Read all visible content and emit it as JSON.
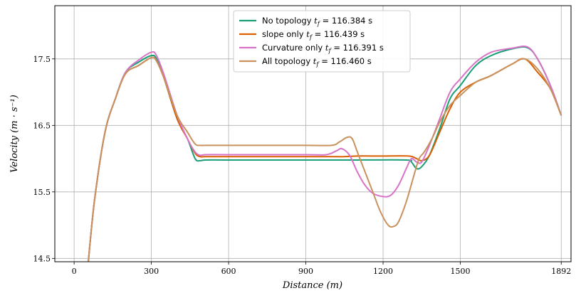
{
  "chart_data": {
    "type": "line",
    "xlabel": "Distance    (m)",
    "ylabel": "Velocity    (m · s⁻¹)",
    "xlim": [
      -75,
      1930
    ],
    "ylim": [
      14.45,
      18.3
    ],
    "x_ticks": [
      0,
      300,
      600,
      900,
      1200,
      1500,
      1892
    ],
    "x_tick_labels": [
      "0",
      "300",
      "600",
      "900",
      "1200",
      "1500",
      "1892"
    ],
    "y_ticks": [
      14.5,
      15.5,
      16.5,
      17.5
    ],
    "y_tick_labels": [
      "14.5",
      "15.5",
      "16.5",
      "17.5"
    ],
    "grid": true,
    "legend_placement": "top-center",
    "series": [
      {
        "name": "No topology",
        "legend_label": "No topology t_f = 116.384 s",
        "legend_prefix": "No topology ",
        "tf_text": "t",
        "tf_sub": "f",
        "tf_value": " = 116.384 s",
        "color": "#1b9e77",
        "points": [
          [
            55,
            14.45
          ],
          [
            80,
            15.4
          ],
          [
            120,
            16.4
          ],
          [
            160,
            16.9
          ],
          [
            200,
            17.3
          ],
          [
            250,
            17.45
          ],
          [
            300,
            17.55
          ],
          [
            320,
            17.5
          ],
          [
            350,
            17.2
          ],
          [
            400,
            16.6
          ],
          [
            440,
            16.3
          ],
          [
            470,
            16.0
          ],
          [
            490,
            15.97
          ],
          [
            510,
            15.98
          ],
          [
            600,
            15.98
          ],
          [
            900,
            15.98
          ],
          [
            1100,
            15.98
          ],
          [
            1290,
            15.98
          ],
          [
            1310,
            15.95
          ],
          [
            1330,
            15.85
          ],
          [
            1350,
            15.88
          ],
          [
            1380,
            16.05
          ],
          [
            1420,
            16.45
          ],
          [
            1460,
            16.9
          ],
          [
            1500,
            17.1
          ],
          [
            1560,
            17.4
          ],
          [
            1620,
            17.55
          ],
          [
            1700,
            17.65
          ],
          [
            1760,
            17.67
          ],
          [
            1800,
            17.5
          ],
          [
            1850,
            17.1
          ],
          [
            1892,
            16.65
          ]
        ]
      },
      {
        "name": "slope only",
        "legend_label": "slope only t_f = 116.439 s",
        "legend_prefix": "slope only ",
        "tf_text": "t",
        "tf_sub": "f",
        "tf_value": " = 116.439 s",
        "color": "#d95f02",
        "points": [
          [
            55,
            14.45
          ],
          [
            80,
            15.4
          ],
          [
            120,
            16.4
          ],
          [
            160,
            16.9
          ],
          [
            200,
            17.28
          ],
          [
            250,
            17.4
          ],
          [
            300,
            17.52
          ],
          [
            320,
            17.47
          ],
          [
            350,
            17.2
          ],
          [
            400,
            16.6
          ],
          [
            440,
            16.3
          ],
          [
            470,
            16.08
          ],
          [
            490,
            16.03
          ],
          [
            510,
            16.03
          ],
          [
            600,
            16.03
          ],
          [
            900,
            16.03
          ],
          [
            1000,
            16.03
          ],
          [
            1050,
            16.03
          ],
          [
            1100,
            16.04
          ],
          [
            1150,
            16.04
          ],
          [
            1200,
            16.04
          ],
          [
            1300,
            16.04
          ],
          [
            1330,
            16.0
          ],
          [
            1350,
            15.97
          ],
          [
            1380,
            16.05
          ],
          [
            1420,
            16.4
          ],
          [
            1460,
            16.75
          ],
          [
            1500,
            17.0
          ],
          [
            1560,
            17.15
          ],
          [
            1620,
            17.25
          ],
          [
            1700,
            17.42
          ],
          [
            1750,
            17.5
          ],
          [
            1800,
            17.3
          ],
          [
            1850,
            17.05
          ],
          [
            1892,
            16.65
          ]
        ]
      },
      {
        "name": "Curvature only",
        "legend_label": "Curvature only t_f = 116.391 s",
        "legend_prefix": "Curvature only ",
        "tf_text": "t",
        "tf_sub": "f",
        "tf_value": " = 116.391 s",
        "color": "#d773c8",
        "points": [
          [
            55,
            14.45
          ],
          [
            80,
            15.4
          ],
          [
            120,
            16.4
          ],
          [
            160,
            16.9
          ],
          [
            200,
            17.3
          ],
          [
            250,
            17.48
          ],
          [
            300,
            17.6
          ],
          [
            320,
            17.55
          ],
          [
            350,
            17.25
          ],
          [
            400,
            16.65
          ],
          [
            440,
            16.3
          ],
          [
            470,
            16.1
          ],
          [
            490,
            16.05
          ],
          [
            510,
            16.06
          ],
          [
            600,
            16.06
          ],
          [
            900,
            16.06
          ],
          [
            980,
            16.06
          ],
          [
            1020,
            16.12
          ],
          [
            1040,
            16.15
          ],
          [
            1070,
            16.05
          ],
          [
            1100,
            15.8
          ],
          [
            1130,
            15.6
          ],
          [
            1160,
            15.48
          ],
          [
            1200,
            15.43
          ],
          [
            1230,
            15.45
          ],
          [
            1260,
            15.6
          ],
          [
            1290,
            15.85
          ],
          [
            1310,
            16.0
          ],
          [
            1330,
            15.95
          ],
          [
            1350,
            15.95
          ],
          [
            1380,
            16.2
          ],
          [
            1420,
            16.6
          ],
          [
            1460,
            17.0
          ],
          [
            1500,
            17.2
          ],
          [
            1560,
            17.45
          ],
          [
            1620,
            17.6
          ],
          [
            1700,
            17.66
          ],
          [
            1760,
            17.68
          ],
          [
            1800,
            17.5
          ],
          [
            1850,
            17.1
          ],
          [
            1892,
            16.65
          ]
        ]
      },
      {
        "name": "All topology",
        "legend_label": "All topology t_f = 116.460 s",
        "legend_prefix": "All topology ",
        "tf_text": "t",
        "tf_sub": "f",
        "tf_value": " = 116.460 s",
        "color": "#c8915d",
        "points": [
          [
            55,
            14.45
          ],
          [
            80,
            15.4
          ],
          [
            120,
            16.4
          ],
          [
            160,
            16.9
          ],
          [
            200,
            17.28
          ],
          [
            250,
            17.4
          ],
          [
            300,
            17.52
          ],
          [
            320,
            17.47
          ],
          [
            350,
            17.2
          ],
          [
            400,
            16.65
          ],
          [
            440,
            16.4
          ],
          [
            470,
            16.22
          ],
          [
            490,
            16.2
          ],
          [
            510,
            16.2
          ],
          [
            600,
            16.2
          ],
          [
            900,
            16.2
          ],
          [
            1000,
            16.2
          ],
          [
            1030,
            16.25
          ],
          [
            1060,
            16.32
          ],
          [
            1080,
            16.3
          ],
          [
            1100,
            16.1
          ],
          [
            1130,
            15.8
          ],
          [
            1160,
            15.5
          ],
          [
            1190,
            15.2
          ],
          [
            1220,
            15.0
          ],
          [
            1240,
            14.98
          ],
          [
            1260,
            15.05
          ],
          [
            1290,
            15.35
          ],
          [
            1320,
            15.75
          ],
          [
            1340,
            16.0
          ],
          [
            1360,
            16.1
          ],
          [
            1390,
            16.3
          ],
          [
            1420,
            16.55
          ],
          [
            1460,
            16.8
          ],
          [
            1500,
            16.95
          ],
          [
            1560,
            17.15
          ],
          [
            1620,
            17.25
          ],
          [
            1700,
            17.42
          ],
          [
            1750,
            17.5
          ],
          [
            1800,
            17.35
          ],
          [
            1850,
            17.05
          ],
          [
            1892,
            16.65
          ]
        ]
      }
    ]
  }
}
